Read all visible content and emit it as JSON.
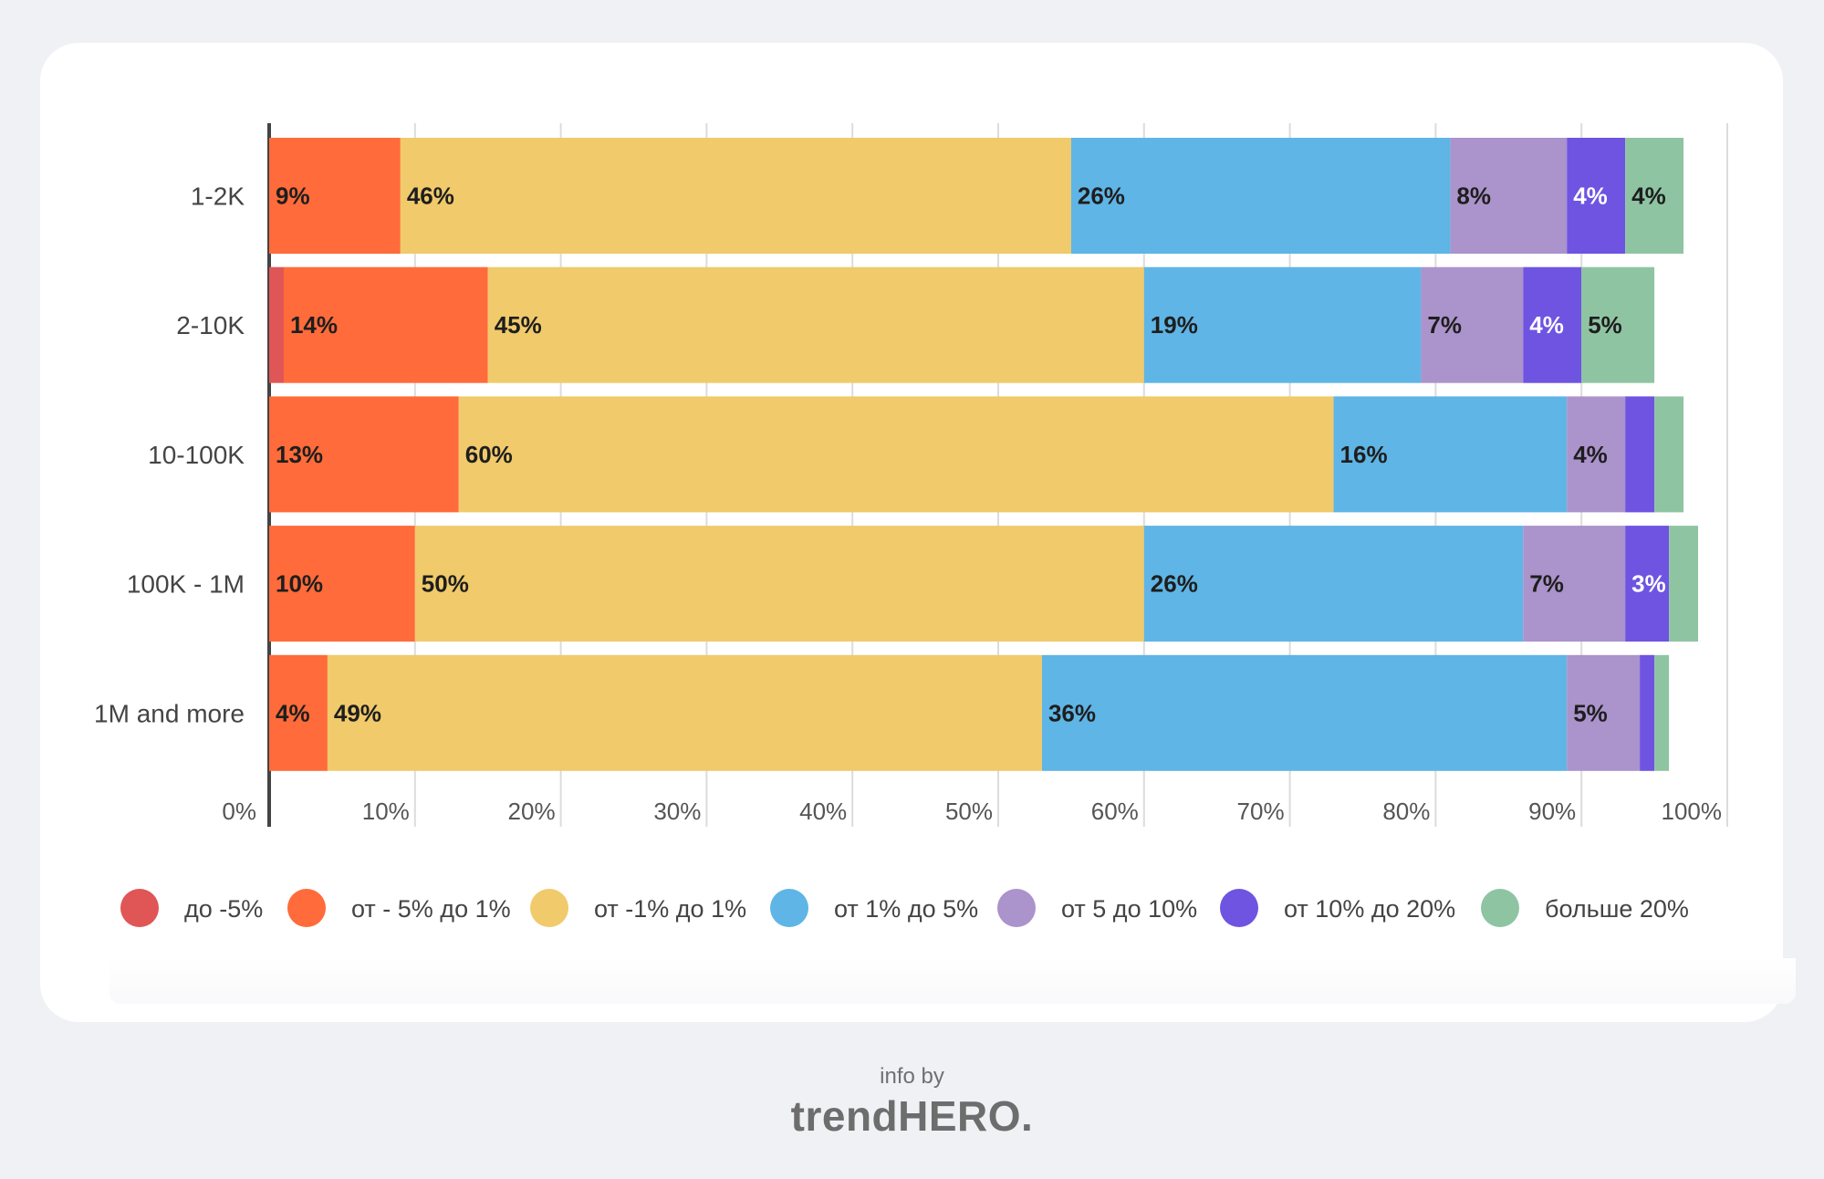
{
  "chart_data": {
    "type": "bar",
    "orientation": "horizontal",
    "stacked": true,
    "categories": [
      "1-2K",
      "2-10K",
      "10-100K",
      "100K - 1M",
      "1M and more"
    ],
    "series": [
      {
        "name": "до -5%",
        "color": "#e05555",
        "values": [
          0,
          1,
          0,
          0,
          0
        ],
        "labels": [
          "",
          "",
          "",
          "",
          ""
        ]
      },
      {
        "name": "от - 5% до 1%",
        "color": "#ff6b3a",
        "values": [
          9,
          14,
          13,
          10,
          4
        ],
        "labels": [
          "9%",
          "14%",
          "13%",
          "10%",
          "4%"
        ]
      },
      {
        "name": "от -1% до 1%",
        "color": "#f0ca6b",
        "values": [
          46,
          45,
          60,
          50,
          49
        ],
        "labels": [
          "46%",
          "45%",
          "60%",
          "50%",
          "49%"
        ]
      },
      {
        "name": "от 1% до 5%",
        "color": "#5fb5e5",
        "values": [
          26,
          19,
          16,
          26,
          36
        ],
        "labels": [
          "26%",
          "19%",
          "16%",
          "26%",
          "36%"
        ]
      },
      {
        "name": "от 5 до 10%",
        "color": "#ab93cb",
        "values": [
          8,
          7,
          4,
          7,
          5
        ],
        "labels": [
          "8%",
          "7%",
          "4%",
          "7%",
          "5%"
        ]
      },
      {
        "name": "от 10% до 20%",
        "color": "#6e54e1",
        "values": [
          4,
          4,
          2,
          3,
          1
        ],
        "labels": [
          "4%",
          "4%",
          "",
          "3%",
          ""
        ]
      },
      {
        "name": "больше 20%",
        "color": "#8fc4a3",
        "values": [
          4,
          5,
          2,
          2,
          1
        ],
        "labels": [
          "4%",
          "5%",
          "",
          "",
          ""
        ]
      }
    ],
    "x_ticks": [
      "0%",
      "10%",
      "20%",
      "30%",
      "40%",
      "50%",
      "60%",
      "70%",
      "80%",
      "90%",
      "100%"
    ],
    "xlim": [
      0,
      100
    ],
    "grid": true,
    "legend": "bottom",
    "xlabel": "",
    "ylabel": ""
  },
  "footer": {
    "by": "info by",
    "brand": "trendHERO."
  }
}
